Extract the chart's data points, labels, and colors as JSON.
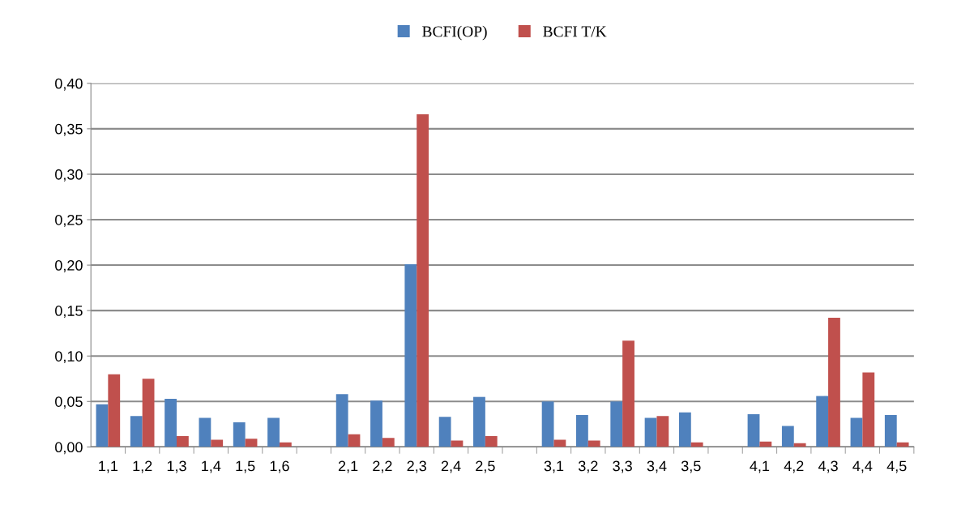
{
  "chart_data": {
    "type": "bar",
    "categories": [
      "1,1",
      "1,2",
      "1,3",
      "1,4",
      "1,5",
      "1,6",
      null,
      "2,1",
      "2,2",
      "2,3",
      "2,4",
      "2,5",
      null,
      "3,1",
      "3,2",
      "3,3",
      "3,4",
      "3,5",
      null,
      "4,1",
      "4,2",
      "4,3",
      "4,4",
      "4,5"
    ],
    "series": [
      {
        "name": "BCFI(OP)",
        "color": "#4f81bd",
        "values": [
          0.047,
          0.034,
          0.053,
          0.032,
          0.027,
          0.032,
          0,
          0.058,
          0.051,
          0.201,
          0.033,
          0.055,
          0,
          0.05,
          0.035,
          0.05,
          0.032,
          0.038,
          0,
          0.036,
          0.023,
          0.056,
          0.032,
          0.035
        ]
      },
      {
        "name": "BCFI T/K",
        "color": "#c0504d",
        "values": [
          0.08,
          0.075,
          0.012,
          0.008,
          0.009,
          0.005,
          0,
          0.014,
          0.01,
          0.366,
          0.007,
          0.012,
          0,
          0.008,
          0.007,
          0.117,
          0.034,
          0.005,
          0,
          0.006,
          0.004,
          0.142,
          0.082,
          0.005
        ]
      }
    ],
    "ylim": [
      0,
      0.4
    ],
    "yticks": [
      {
        "value": 0,
        "label": "0,00"
      },
      {
        "value": 0.05,
        "label": "0,05"
      },
      {
        "value": 0.1,
        "label": "0,10"
      },
      {
        "value": 0.15,
        "label": "0,15"
      },
      {
        "value": 0.2,
        "label": "0,20"
      },
      {
        "value": 0.25,
        "label": "0,25"
      },
      {
        "value": 0.3,
        "label": "0,30"
      },
      {
        "value": 0.35,
        "label": "0,35"
      },
      {
        "value": 0.4,
        "label": "0,40"
      }
    ],
    "grid": "y",
    "legend": "top"
  }
}
